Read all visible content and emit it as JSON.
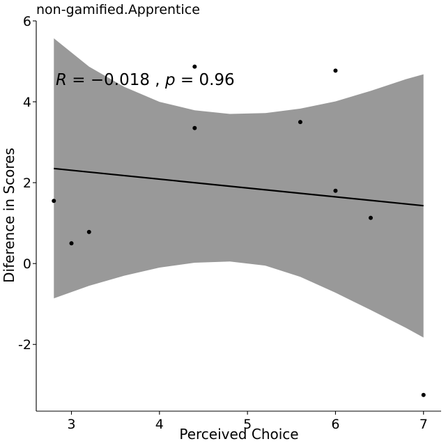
{
  "chart_data": {
    "type": "scatter",
    "title": "non-gamified.Apprentice",
    "xlabel": "Perceived Choice",
    "ylabel": "Diference in Scores",
    "xlim": [
      2.6,
      7.2
    ],
    "ylim": [
      -3.65,
      6.0
    ],
    "x_ticks": [
      3,
      4,
      5,
      6,
      7
    ],
    "x_tick_labels": [
      "3",
      "4",
      "5",
      "6",
      "7"
    ],
    "y_ticks": [
      -2,
      0,
      2,
      4,
      6
    ],
    "y_tick_labels": [
      "-2",
      "0",
      "2",
      "4",
      "6"
    ],
    "grid": false,
    "points": [
      {
        "x": 2.8,
        "y": 1.55
      },
      {
        "x": 3.0,
        "y": 0.5
      },
      {
        "x": 3.2,
        "y": 0.78
      },
      {
        "x": 4.4,
        "y": 4.87
      },
      {
        "x": 4.4,
        "y": 3.35
      },
      {
        "x": 5.6,
        "y": 3.5
      },
      {
        "x": 6.0,
        "y": 4.77
      },
      {
        "x": 6.0,
        "y": 1.8
      },
      {
        "x": 6.4,
        "y": 1.13
      },
      {
        "x": 7.0,
        "y": -3.25
      }
    ],
    "regression_line": {
      "x": [
        2.8,
        7.0
      ],
      "y": [
        2.35,
        1.43
      ]
    },
    "confidence_band": {
      "x": [
        2.8,
        3.2,
        3.6,
        4.0,
        4.4,
        4.8,
        5.2,
        5.6,
        6.0,
        6.4,
        6.8,
        7.0
      ],
      "upper": [
        5.57,
        4.87,
        4.37,
        4.0,
        3.79,
        3.7,
        3.72,
        3.83,
        4.01,
        4.27,
        4.56,
        4.68
      ],
      "lower": [
        -0.86,
        -0.55,
        -0.3,
        -0.1,
        0.02,
        0.05,
        -0.05,
        -0.33,
        -0.72,
        -1.15,
        -1.59,
        -1.83
      ]
    },
    "annotation": {
      "r_symbol": "R",
      "r_eq": " = −0.018 , ",
      "p_symbol": "p",
      "p_eq": " = 0.96"
    },
    "colors": {
      "band": "#999999",
      "line": "#000000",
      "point": "#000000",
      "axis": "#000000"
    }
  }
}
